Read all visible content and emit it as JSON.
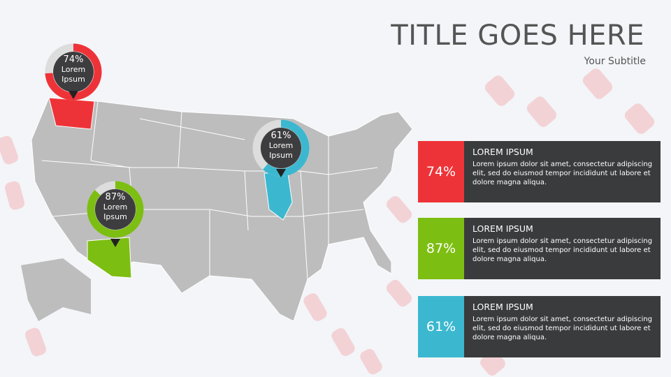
{
  "header": {
    "title": "TITLE GOES HERE",
    "subtitle": "Your Subtitle"
  },
  "callouts": [
    {
      "value": 74,
      "label": "74%",
      "text": "Lorem Ipsum",
      "color": "#ee3338"
    },
    {
      "value": 61,
      "label": "61%",
      "text": "Lorem Ipsum",
      "color": "#3bb8d0"
    },
    {
      "value": 87,
      "label": "87%",
      "text": "Lorem Ipsum",
      "color": "#7dbe12"
    }
  ],
  "cards": [
    {
      "percent": "74%",
      "heading": "LOREM IPSUM",
      "body": "Lorem ipsum dolor sit amet, consectetur adipiscing elit, sed do eiusmod tempor incididunt ut labore et dolore magna aliqua.",
      "color": "#ee3338"
    },
    {
      "percent": "87%",
      "heading": "LOREM IPSUM",
      "body": "Lorem ipsum dolor sit amet, consectetur adipiscing elit, sed do eiusmod tempor incididunt ut labore et dolore magna aliqua.",
      "color": "#7dbe12"
    },
    {
      "percent": "61%",
      "heading": "LOREM IPSUM",
      "body": "Lorem ipsum dolor sit amet, consectetur adipiscing elit, sed do eiusmod tempor incididunt ut labore et dolore magna aliqua.",
      "color": "#3bb8d0"
    }
  ]
}
